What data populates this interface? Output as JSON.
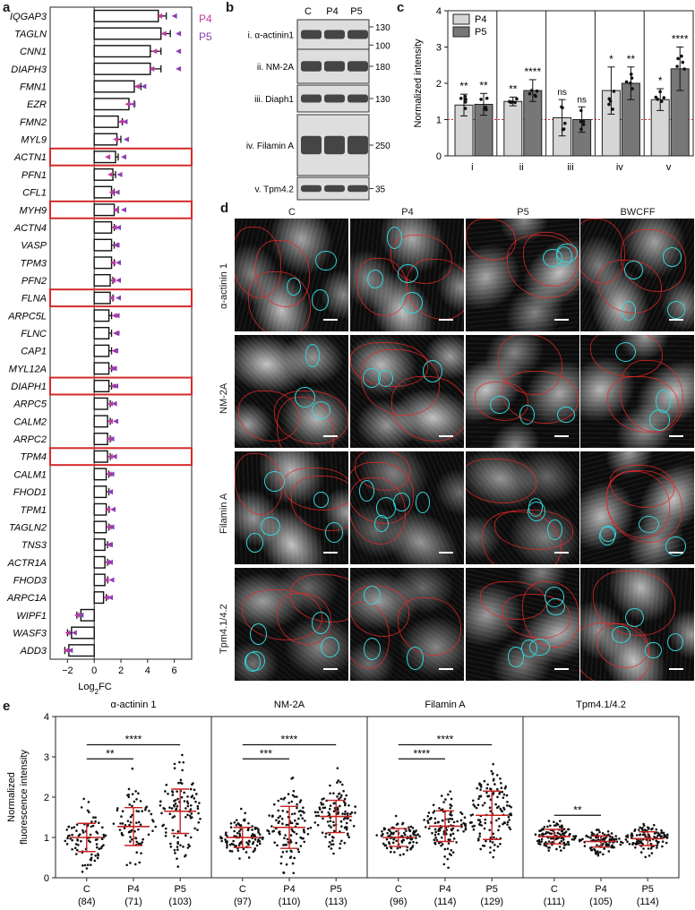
{
  "panel_letters": {
    "a": "a",
    "b": "b",
    "c": "c",
    "d": "d",
    "e": "e"
  },
  "panel_a": {
    "genes": [
      "IQGAP3",
      "TAGLN",
      "CNN1",
      "DIAPH3",
      "FMN1",
      "EZR",
      "FMN2",
      "MYL9",
      "ACTN1",
      "PFN1",
      "CFL1",
      "MYH9",
      "ACTN4",
      "VASP",
      "TPM3",
      "PFN2",
      "FLNA",
      "ARPC5L",
      "FLNC",
      "CAP1",
      "MYL12A",
      "DIAPH1",
      "ARPC5",
      "CALM2",
      "ARPC2",
      "TPM4",
      "CALM1",
      "FHOD1",
      "TPM1",
      "TAGLN2",
      "TNS3",
      "ACTR1A",
      "FHOD3",
      "ARPC1A",
      "WIPF1",
      "WASF3",
      "ADD3"
    ],
    "highlighted": [
      "ACTN1",
      "MYH9",
      "FLNA",
      "DIAPH1",
      "TPM4"
    ],
    "values": [
      4.8,
      5.0,
      4.2,
      4.2,
      3.0,
      2.6,
      1.8,
      1.7,
      1.6,
      1.4,
      1.3,
      1.5,
      1.3,
      1.3,
      1.3,
      1.2,
      1.2,
      1.1,
      1.1,
      1.1,
      1.1,
      1.1,
      1.0,
      1.0,
      1.0,
      1.0,
      0.9,
      0.9,
      0.9,
      0.9,
      0.8,
      0.8,
      0.8,
      0.7,
      -1.0,
      -1.7,
      -1.9
    ],
    "errors": [
      0.6,
      0.7,
      0.8,
      0.8,
      0.5,
      0.4,
      0.3,
      0.3,
      0.2,
      0.2,
      0.2,
      0.3,
      0.2,
      0.2,
      0.2,
      0.2,
      0.2,
      0.2,
      0.2,
      0.2,
      0.2,
      0.2,
      0.2,
      0.2,
      0.2,
      0.2,
      0.2,
      0.2,
      0.2,
      0.2,
      0.2,
      0.2,
      0.2,
      0.2,
      0.3,
      0.3,
      0.3
    ],
    "p4_marks": [
      4.9,
      5.2,
      4.5,
      4.3,
      3.2,
      2.5,
      2.0,
      1.6,
      1.0,
      1.2,
      1.3,
      1.6,
      1.5,
      1.6,
      1.4,
      1.4,
      1.3,
      1.5,
      1.6,
      1.5,
      1.3,
      1.4,
      1.2,
      1.2,
      1.1,
      1.2,
      1.1,
      1.2,
      1.0,
      1.1,
      1.1,
      1.0,
      0.9,
      0.9,
      -1.3,
      -2.0,
      -2.1
    ],
    "p5_marks": [
      6.0,
      6.3,
      6.3,
      6.3,
      3.7,
      2.9,
      2.3,
      2.4,
      2.2,
      1.9,
      1.7,
      2.2,
      1.8,
      1.7,
      1.8,
      1.8,
      1.8,
      1.7,
      1.7,
      1.6,
      1.5,
      1.6,
      1.5,
      1.6,
      1.3,
      1.5,
      1.3,
      1.2,
      1.4,
      1.3,
      1.2,
      1.2,
      1.3,
      1.2,
      -1.0,
      -1.5,
      -1.8
    ],
    "xticks": [
      -2,
      0,
      2,
      4,
      6
    ],
    "xlim": [
      -3.3,
      7.3
    ],
    "xlabel": "Log",
    "xlabel_sub": "2",
    "xlabel_tail": "FC",
    "legend": {
      "p4": "P4",
      "p5": "P5"
    },
    "colors": {
      "p4": "#c03aa0",
      "p5": "#8a3fb5",
      "highlight": "#d42a2a"
    }
  },
  "panel_b": {
    "lanes": [
      "C",
      "P4",
      "P5"
    ],
    "blots": [
      {
        "label": "i. α-actinin1",
        "markers": [
          "130",
          "100"
        ]
      },
      {
        "label": "ii. NM-2A",
        "markers": [
          "180"
        ]
      },
      {
        "label": "iii. Diaph1",
        "markers": [
          "130"
        ]
      },
      {
        "label": "iv. Filamin A",
        "markers": [
          "250"
        ]
      },
      {
        "label": "v. Tpm4.2",
        "markers": [
          "35"
        ]
      }
    ]
  },
  "panel_c": {
    "ylabel": "Normalized intensity",
    "ylim": [
      0,
      4
    ],
    "yticks": [
      0,
      1,
      2,
      3,
      4
    ],
    "groups": [
      "i",
      "ii",
      "iii",
      "iv",
      "v"
    ],
    "legend": [
      "P4",
      "P5"
    ],
    "series": [
      {
        "name": "P4",
        "color": "#d6d6d6",
        "values": [
          1.4,
          1.5,
          1.05,
          1.8,
          1.55
        ],
        "errors": [
          0.3,
          0.12,
          0.5,
          0.65,
          0.3
        ],
        "sig": [
          "**",
          "**",
          "ns",
          "*",
          "*"
        ]
      },
      {
        "name": "P5",
        "color": "#777777",
        "values": [
          1.42,
          1.8,
          1.0,
          2.0,
          2.4
        ],
        "errors": [
          0.3,
          0.3,
          0.35,
          0.45,
          0.6
        ],
        "sig": [
          "**",
          "****",
          "ns",
          "**",
          "****"
        ]
      }
    ],
    "reference_line": 1
  },
  "panel_d": {
    "columns": [
      "C",
      "P4",
      "P5",
      "BWCFF"
    ],
    "rows": [
      "α-actinin 1",
      "NM-2A",
      "Filamin A",
      "Tpm4.1/4.2"
    ]
  },
  "panel_e": {
    "ylabel_line1": "Normalized",
    "ylabel_line2": "fluorescence intensity",
    "ylim": [
      0,
      4
    ],
    "yticks": [
      0,
      1,
      2,
      3,
      4
    ],
    "groups": [
      {
        "title": "α-actinin 1",
        "conditions": [
          "C",
          "P4",
          "P5"
        ],
        "n": [
          "(84)",
          "(71)",
          "(103)"
        ],
        "means": [
          1.0,
          1.27,
          1.65
        ],
        "sds": [
          0.35,
          0.47,
          0.55
        ],
        "sig": [
          {
            "from": 0,
            "to": 2,
            "label": "****",
            "y": 3.3
          },
          {
            "from": 0,
            "to": 1,
            "label": "**",
            "y": 2.95
          }
        ]
      },
      {
        "title": "NM-2A",
        "conditions": [
          "C",
          "P4",
          "P5"
        ],
        "n": [
          "(97)",
          "(110)",
          "(113)"
        ],
        "means": [
          1.0,
          1.25,
          1.52
        ],
        "sds": [
          0.25,
          0.52,
          0.4
        ],
        "sig": [
          {
            "from": 0,
            "to": 2,
            "label": "****",
            "y": 3.3
          },
          {
            "from": 0,
            "to": 1,
            "label": "***",
            "y": 2.95
          }
        ]
      },
      {
        "title": "Filamin A",
        "conditions": [
          "C",
          "P4",
          "P5"
        ],
        "n": [
          "(96)",
          "(114)",
          "(129)"
        ],
        "means": [
          1.0,
          1.28,
          1.55
        ],
        "sds": [
          0.22,
          0.38,
          0.6
        ],
        "sig": [
          {
            "from": 0,
            "to": 2,
            "label": "****",
            "y": 3.3
          },
          {
            "from": 0,
            "to": 1,
            "label": "****",
            "y": 2.95
          }
        ]
      },
      {
        "title": "Tpm4.1/4.2",
        "conditions": [
          "C",
          "P4",
          "P5"
        ],
        "n": [
          "(111)",
          "(105)",
          "(114)"
        ],
        "means": [
          1.02,
          0.9,
          0.97
        ],
        "sds": [
          0.18,
          0.14,
          0.17
        ],
        "sig": [
          {
            "from": 0,
            "to": 1,
            "label": "**",
            "y": 1.55
          }
        ]
      }
    ]
  }
}
